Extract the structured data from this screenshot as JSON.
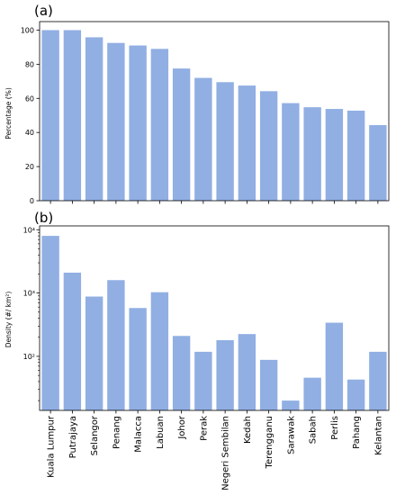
{
  "chart_data": [
    {
      "panel": "(a)",
      "type": "bar",
      "categories": [
        "Kuala Lumpur",
        "Putrajaya",
        "Selangor",
        "Penang",
        "Malacca",
        "Labuan",
        "Johor",
        "Perak",
        "Negeri Sembilan",
        "Kedah",
        "Terengganu",
        "Sarawak",
        "Sabah",
        "Perlis",
        "Pahang",
        "Kelantan"
      ],
      "values": [
        100,
        100,
        95.8,
        92.5,
        91.0,
        89.0,
        77.5,
        72.0,
        69.5,
        67.5,
        64.2,
        57.2,
        54.8,
        53.8,
        52.8,
        44.3
      ],
      "ylabel": "Percentage (%)",
      "ylim": [
        0,
        105
      ],
      "yticks": [
        "0",
        "20",
        "40",
        "60",
        "80",
        "100"
      ],
      "color": "#91afe3",
      "grid": false
    },
    {
      "panel": "(b)",
      "type": "bar",
      "scale": "log",
      "categories": [
        "Kuala Lumpur",
        "Putrajaya",
        "Selangor",
        "Penang",
        "Malacca",
        "Labuan",
        "Johor",
        "Perak",
        "Negeri Sembilan",
        "Kedah",
        "Terengganu",
        "Sarawak",
        "Sabah",
        "Perlis",
        "Pahang",
        "Kelantan"
      ],
      "values": [
        8000,
        2100,
        880,
        1600,
        580,
        1030,
        210,
        118,
        180,
        225,
        88,
        20,
        46,
        340,
        43,
        118
      ],
      "ylabel": "Density (#/ km²)",
      "ylim": [
        14,
        11500
      ],
      "yticks": [
        "10²",
        "10³",
        "10⁴"
      ],
      "color": "#91afe3",
      "grid": false
    }
  ]
}
